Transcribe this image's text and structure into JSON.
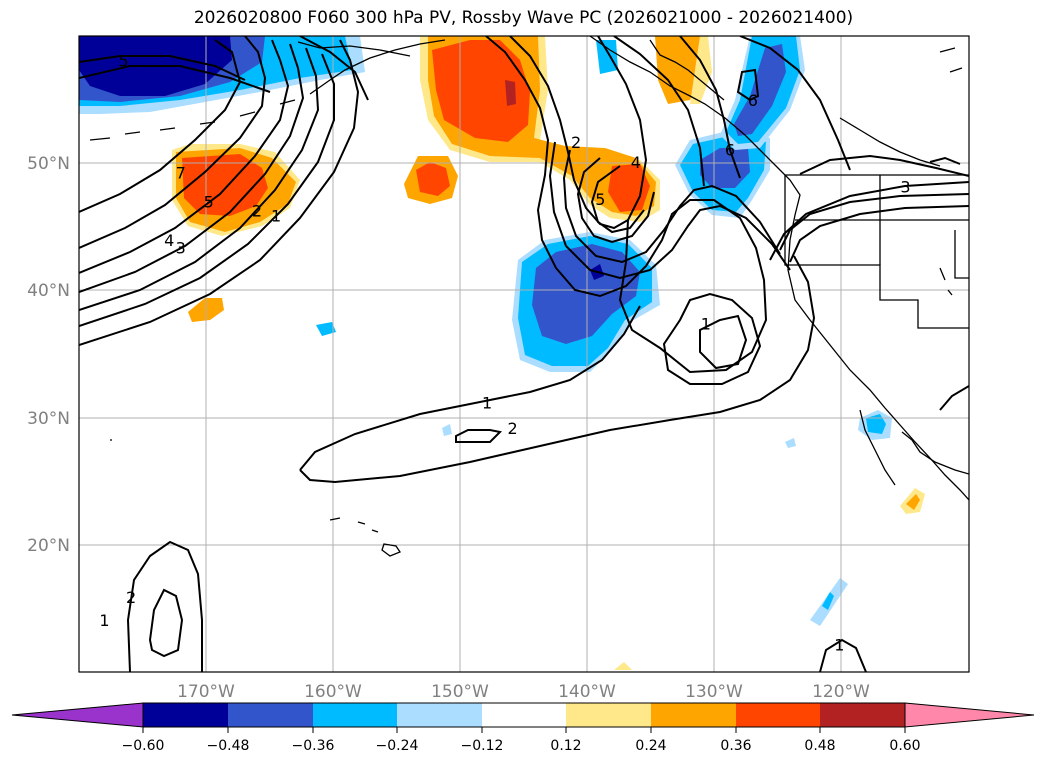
{
  "title": "2026020800 F060 300 hPa PV, Rossby Wave PC (2026021000 - 2026021400)",
  "map": {
    "lon_range": [
      -180,
      -110
    ],
    "lat_range": [
      10,
      60
    ],
    "grid": true,
    "lon_ticks": [
      {
        "value": -170,
        "label": "170°W"
      },
      {
        "value": -160,
        "label": "160°W"
      },
      {
        "value": -150,
        "label": "150°W"
      },
      {
        "value": -140,
        "label": "140°W"
      },
      {
        "value": -130,
        "label": "130°W"
      },
      {
        "value": -120,
        "label": "120°W"
      }
    ],
    "lat_ticks": [
      {
        "value": 20,
        "label": "20°N"
      },
      {
        "value": 30,
        "label": "30°N"
      },
      {
        "value": 40,
        "label": "40°N"
      },
      {
        "value": 50,
        "label": "50°N"
      }
    ]
  },
  "colorbar": {
    "levels": [
      "−0.60",
      "−0.48",
      "−0.36",
      "−0.24",
      "−0.12",
      "0.12",
      "0.24",
      "0.36",
      "0.48",
      "0.60"
    ],
    "colors": [
      "#9933cc",
      "#000099",
      "#3355cc",
      "#00bbff",
      "#aaddff",
      "#ffffff",
      "#ffe88a",
      "#ffa500",
      "#ff4500",
      "#b22222",
      "#ff88aa"
    ]
  },
  "contour_labels": [
    {
      "text": "5",
      "lon": -176.5,
      "lat": 58.0
    },
    {
      "text": "7",
      "lon": -172.0,
      "lat": 49.2
    },
    {
      "text": "5",
      "lon": -169.8,
      "lat": 46.9
    },
    {
      "text": "2",
      "lon": -166.0,
      "lat": 46.2
    },
    {
      "text": "1",
      "lon": -164.5,
      "lat": 45.8
    },
    {
      "text": "4",
      "lon": -172.9,
      "lat": 43.9
    },
    {
      "text": "3",
      "lon": -172.0,
      "lat": 43.3
    },
    {
      "text": "2",
      "lon": -140.9,
      "lat": 51.6
    },
    {
      "text": "4",
      "lon": -136.2,
      "lat": 50.0
    },
    {
      "text": "5",
      "lon": -139.0,
      "lat": 47.1
    },
    {
      "text": "6",
      "lon": -127.0,
      "lat": 54.9
    },
    {
      "text": "6",
      "lon": -128.8,
      "lat": 51.0
    },
    {
      "text": "3",
      "lon": -115.0,
      "lat": 48.1
    },
    {
      "text": "1",
      "lon": -130.7,
      "lat": 37.3
    },
    {
      "text": "1",
      "lon": -147.9,
      "lat": 31.1
    },
    {
      "text": "2",
      "lon": -145.9,
      "lat": 29.1
    },
    {
      "text": "1",
      "lon": -178.0,
      "lat": 14.0
    },
    {
      "text": "2",
      "lon": -175.9,
      "lat": 15.8
    },
    {
      "text": "1",
      "lon": -120.2,
      "lat": 12.1
    }
  ]
}
